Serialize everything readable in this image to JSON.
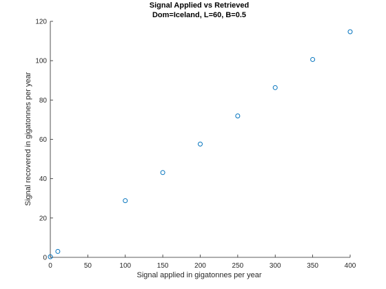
{
  "chart_data": {
    "type": "scatter",
    "title": "Signal Applied vs Retrieved",
    "subtitle": "Dom=Iceland, L=60, B=0.5",
    "xlabel": "Signal applied in gigatonnes per year",
    "ylabel": "Signal recovered in gigatonnes per year",
    "xlim": [
      0,
      400
    ],
    "ylim": [
      0,
      120
    ],
    "xticks": [
      0,
      50,
      100,
      150,
      200,
      250,
      300,
      350,
      400
    ],
    "yticks": [
      0,
      20,
      40,
      60,
      80,
      100,
      120
    ],
    "grid": false,
    "marker": "circle",
    "marker_color": "#0072BD",
    "series": [
      {
        "x": [
          0,
          10,
          100,
          150,
          200,
          250,
          300,
          350,
          400
        ],
        "y": [
          0.3,
          3,
          28.8,
          43.1,
          57.6,
          71.9,
          86.3,
          100.6,
          114.7
        ]
      }
    ]
  }
}
